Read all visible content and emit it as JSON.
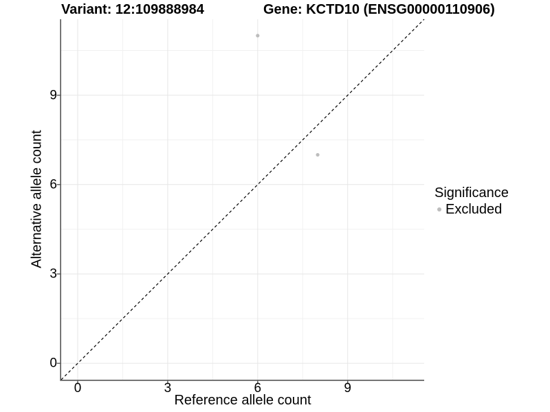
{
  "figure": {
    "title_left": "Variant: 12:109888984",
    "title_right": "Gene: KCTD10 (ENSG00000110906)"
  },
  "chart_data": {
    "type": "scatter",
    "title_left": "Variant: 12:109888984",
    "title_right": "Gene: KCTD10 (ENSG00000110906)",
    "xlabel": "Reference allele count",
    "ylabel": "Alternative allele count",
    "xlim": [
      -0.55,
      11.55
    ],
    "ylim": [
      -0.55,
      11.55
    ],
    "major_ticks": [
      0,
      3,
      6,
      9
    ],
    "minor_ticks": [
      1.5,
      4.5,
      7.5,
      10.5
    ],
    "grid": true,
    "series": [
      {
        "name": "Excluded",
        "color": "#bdbdbd",
        "points": [
          {
            "x": 6,
            "y": 11
          },
          {
            "x": 8,
            "y": 7
          }
        ]
      }
    ],
    "reference_line": {
      "style": "dashed",
      "color": "#000000",
      "from": [
        -0.55,
        -0.55
      ],
      "to": [
        11.55,
        11.55
      ]
    },
    "legend": {
      "title": "Significance",
      "position": "right",
      "entries": [
        {
          "label": "Excluded",
          "color": "#bdbdbd"
        }
      ]
    },
    "colors": {
      "axis_line": "#555555",
      "tick_mark": "#555555",
      "grid_major": "#e6e6e6",
      "grid_minor": "#f1f1f1",
      "text": "#000000",
      "point": "#bdbdbd"
    }
  }
}
